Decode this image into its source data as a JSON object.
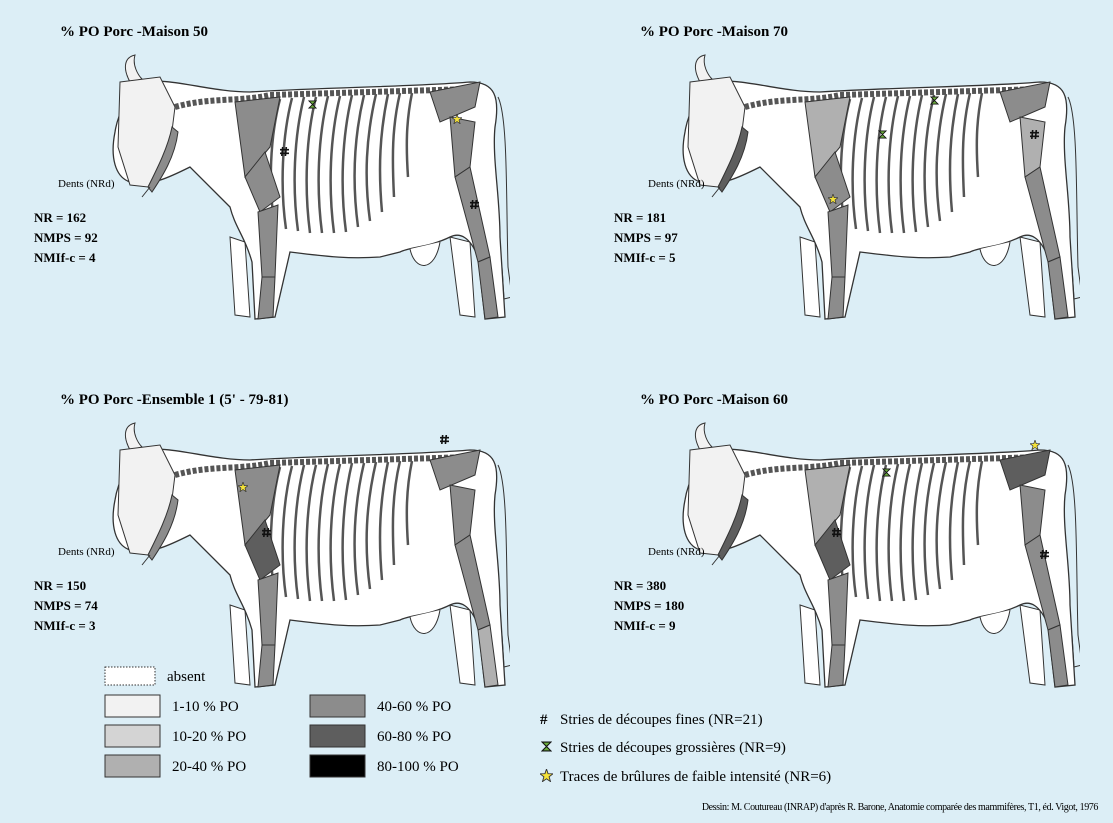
{
  "panels": [
    {
      "title": "% PO Porc -Maison 50",
      "teeth_label": "Dents (NRd)",
      "stats": [
        "NR = 162",
        "NMPS = 92",
        "NMIf-c = 4"
      ]
    },
    {
      "title": "% PO Porc -Maison 70",
      "teeth_label": "Dents (NRd)",
      "stats": [
        "NR = 181",
        "NMPS = 97",
        "NMIf-c = 5"
      ]
    },
    {
      "title": "% PO Porc -Ensemble 1 (5' - 79-81)",
      "teeth_label": "Dents (NRd)",
      "stats": [
        "NR = 150",
        "NMPS = 74",
        "NMIf-c = 3"
      ]
    },
    {
      "title": "% PO Porc -Maison 60",
      "teeth_label": "Dents (NRd)",
      "stats": [
        "NR = 380",
        "NMPS = 180",
        "NMIf-c = 9"
      ]
    }
  ],
  "legend": {
    "shading": [
      {
        "label": "absent",
        "color": "#ffffff"
      },
      {
        "label": "1-10 % PO",
        "color": "#f2f2f2"
      },
      {
        "label": "10-20 % PO",
        "color": "#d4d4d4"
      },
      {
        "label": "20-40 % PO",
        "color": "#b0b0b0"
      },
      {
        "label": "40-60 % PO",
        "color": "#8c8c8c"
      },
      {
        "label": "60-80 % PO",
        "color": "#5e5e5e"
      },
      {
        "label": "80-100 % PO",
        "color": "#000000"
      }
    ],
    "marks": [
      {
        "symbol": "#",
        "label": "Stries de découpes fines (NR=21)"
      },
      {
        "label": "Stries de découpes grossières (NR=9)"
      },
      {
        "label": "Traces de brûlures de faible intensité (NR=6)"
      }
    ]
  },
  "credit": "Dessin: M. Coutureau (INRAP) d'après R. Barone, Anatomie comparée des mammifères, T1, éd. Vigot, 1976"
}
